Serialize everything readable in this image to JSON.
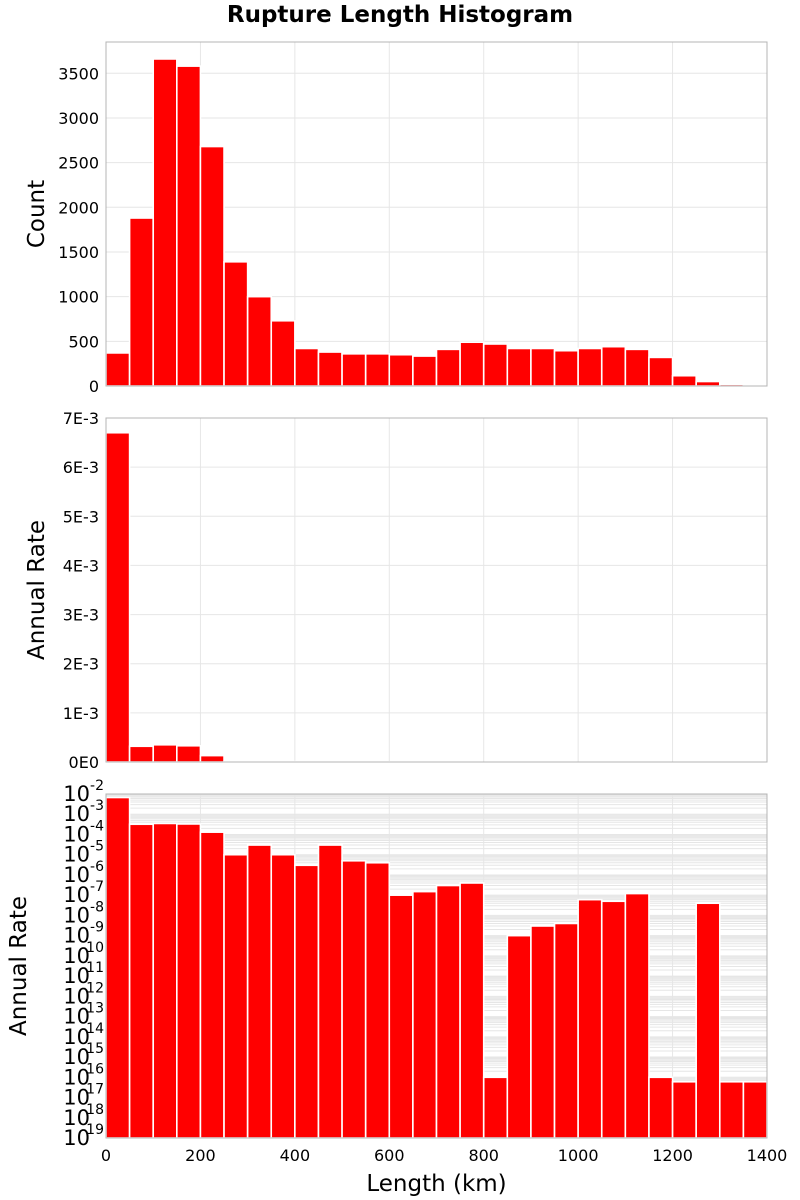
{
  "title": "Rupture Length Histogram",
  "colors": {
    "bar": "#ff0000",
    "grid": "#e6e6e6",
    "frame": "#b4b4b4",
    "bar_edge": "#ffffff"
  },
  "chart_data": [
    {
      "type": "bar",
      "panel": "top",
      "scale": "linear",
      "ylabel": "Count",
      "xlim": [
        0,
        1400
      ],
      "ylim": [
        0,
        3850
      ],
      "yticks": [
        0,
        500,
        1000,
        1500,
        2000,
        2500,
        3000,
        3500
      ],
      "ytick_labels": [
        "0",
        "500",
        "1000",
        "1500",
        "2000",
        "2500",
        "3000",
        "3500"
      ],
      "bin_width": 50,
      "x_centers": [
        25,
        75,
        125,
        175,
        225,
        275,
        325,
        375,
        425,
        475,
        525,
        575,
        625,
        675,
        725,
        775,
        825,
        875,
        925,
        975,
        1025,
        1075,
        1125,
        1175,
        1225,
        1275,
        1325,
        1375
      ],
      "values": [
        370,
        1880,
        3660,
        3580,
        2680,
        1390,
        1000,
        730,
        420,
        380,
        360,
        360,
        350,
        335,
        410,
        490,
        470,
        420,
        420,
        395,
        420,
        440,
        410,
        320,
        115,
        50,
        20,
        5
      ]
    },
    {
      "type": "bar",
      "panel": "middle",
      "scale": "linear",
      "ylabel": "Annual Rate",
      "xlim": [
        0,
        1400
      ],
      "ylim": [
        0,
        0.007
      ],
      "yticks": [
        0,
        0.001,
        0.002,
        0.003,
        0.004,
        0.005,
        0.006,
        0.007
      ],
      "ytick_labels": [
        "0E0",
        "1E-3",
        "2E-3",
        "3E-3",
        "4E-3",
        "5E-3",
        "6E-3",
        "7E-3"
      ],
      "bin_width": 50,
      "x_centers": [
        25,
        75,
        125,
        175,
        225,
        275,
        325,
        375,
        425,
        475,
        525,
        575,
        625,
        675,
        725,
        775,
        825,
        875,
        925,
        975,
        1025,
        1075,
        1125,
        1175,
        1225,
        1275,
        1325,
        1375
      ],
      "values": [
        0.0067,
        0.00032,
        0.00035,
        0.00033,
        0.00013,
        1e-05,
        3e-05,
        1e-05,
        3e-06,
        3e-05,
        5e-06,
        4e-06,
        0,
        0,
        0,
        0,
        0,
        0,
        0,
        0,
        0,
        0,
        0,
        0,
        0,
        0,
        0,
        0
      ]
    },
    {
      "type": "bar",
      "panel": "bottom",
      "scale": "log",
      "ylabel": "Annual Rate",
      "xlabel": "Length (km)",
      "xlim": [
        0,
        1400
      ],
      "xticks": [
        0,
        200,
        400,
        600,
        800,
        1000,
        1200,
        1400
      ],
      "xtick_labels": [
        "0",
        "200",
        "400",
        "600",
        "800",
        "1000",
        "1200",
        "1400"
      ],
      "ylim_exponent": [
        -19,
        -2
      ],
      "ytick_base": "10",
      "ytick_exponents": [
        "-2",
        "-3",
        "-4",
        "-5",
        "-6",
        "-7",
        "-8",
        "-9",
        "-10",
        "-11",
        "-12",
        "-13",
        "-14",
        "-15",
        "-16",
        "-17",
        "-18",
        "-19"
      ],
      "bin_width": 50,
      "x_centers": [
        25,
        75,
        125,
        175,
        225,
        275,
        325,
        375,
        425,
        475,
        525,
        575,
        625,
        675,
        725,
        775,
        825,
        875,
        925,
        975,
        1025,
        1075,
        1125,
        1175,
        1225,
        1275,
        1325,
        1375
      ],
      "values": [
        0.0067,
        0.00032,
        0.00035,
        0.00033,
        0.00013,
        1e-05,
        3e-05,
        1e-05,
        3e-06,
        3e-05,
        5e-06,
        4e-06,
        1e-07,
        1.5e-07,
        3e-07,
        4e-07,
        1e-16,
        1e-09,
        3e-09,
        4e-09,
        6e-08,
        5e-08,
        1.2e-07,
        1e-16,
        6e-17,
        4e-08,
        6e-17,
        6e-17
      ]
    }
  ]
}
